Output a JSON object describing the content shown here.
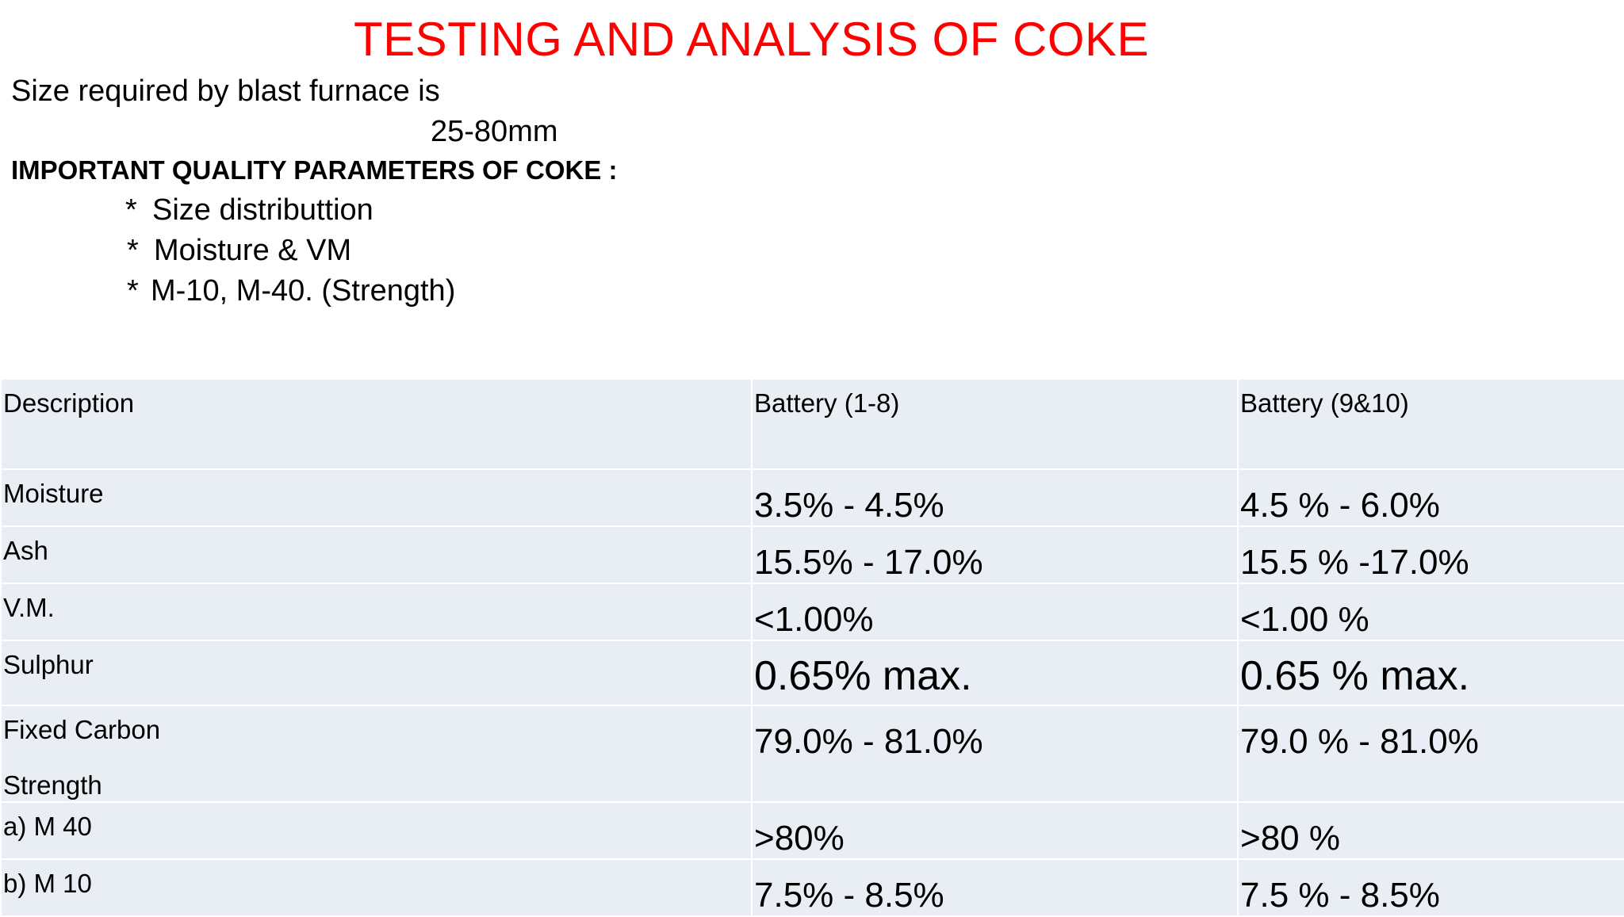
{
  "title": "TESTING AND ANALYSIS OF COKE",
  "intro": {
    "line": "Size required by blast furnace is",
    "size": "25-80mm"
  },
  "parameters": {
    "heading": "IMPORTANT QUALITY PARAMETERS OF COKE :",
    "items": [
      "Size distributtion",
      "Moisture & VM",
      "M-10, M-40. (Strength)"
    ]
  },
  "table": {
    "headers": [
      "Description",
      "Battery (1-8)",
      "Battery (9&10)"
    ],
    "rows": [
      {
        "description": "Moisture",
        "battery_1_8": "3.5% - 4.5%",
        "battery_9_10": "4.5 % - 6.0%"
      },
      {
        "description": "Ash",
        "battery_1_8": "15.5% - 17.0%",
        "battery_9_10": "15.5 % -17.0%"
      },
      {
        "description": "V.M.",
        "battery_1_8": "<1.00%",
        "battery_9_10": "<1.00 %"
      },
      {
        "description": "Sulphur",
        "battery_1_8": "0.65% max.",
        "battery_9_10": "0.65 % max."
      },
      {
        "description": "Fixed Carbon",
        "sub_description": "Strength",
        "battery_1_8": "79.0% - 81.0%",
        "battery_9_10": "79.0 % - 81.0%"
      },
      {
        "description": "a) M 40",
        "battery_1_8": ">80%",
        "battery_9_10": ">80 %"
      },
      {
        "description": "b) M 10",
        "battery_1_8": "7.5% - 8.5%",
        "battery_9_10": "7.5 % - 8.5%"
      }
    ]
  },
  "colors": {
    "title": "#ff0000",
    "table_fill": "#e9edf4",
    "table_border": "#ffffff"
  }
}
